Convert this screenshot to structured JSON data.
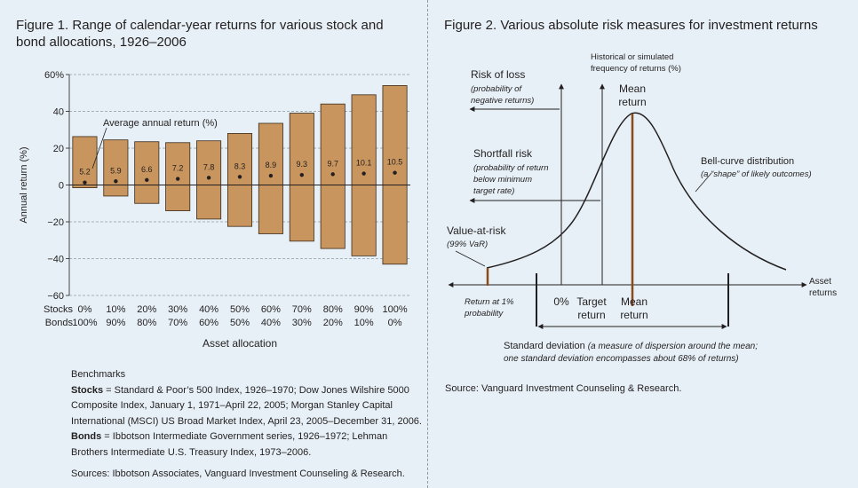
{
  "figure1": {
    "title": "Figure 1. Range of calendar-year returns for various stock and bond allocations, 1926–2006",
    "chart_data": {
      "type": "bar",
      "subtype": "floating-range",
      "ylabel": "Annual return (%)",
      "xlabel": "Asset allocation",
      "ylim": [
        -60,
        60
      ],
      "yticks": [
        "60%",
        "40",
        "20",
        "0",
        "−20",
        "−40",
        "−60"
      ],
      "ytick_values": [
        60,
        40,
        20,
        0,
        -20,
        -40,
        -60
      ],
      "row_labels": [
        "Stocks",
        "Bonds"
      ],
      "categories_stocks": [
        "0%",
        "10%",
        "20%",
        "30%",
        "40%",
        "50%",
        "60%",
        "70%",
        "80%",
        "90%",
        "100%"
      ],
      "categories_bonds": [
        "100%",
        "90%",
        "80%",
        "70%",
        "60%",
        "50%",
        "40%",
        "30%",
        "20%",
        "10%",
        "0%"
      ],
      "max": [
        26.3,
        24.5,
        23.5,
        23.0,
        24.0,
        28.0,
        33.5,
        39.0,
        44.0,
        49.0,
        54.0
      ],
      "min": [
        -1.5,
        -6.0,
        -10.0,
        -14.0,
        -18.5,
        -22.5,
        -26.5,
        -30.5,
        -34.5,
        -38.5,
        -43.0
      ],
      "average": [
        5.2,
        5.9,
        6.6,
        7.2,
        7.8,
        8.3,
        8.9,
        9.3,
        9.7,
        10.1,
        10.5
      ],
      "average_labels": [
        "5.2",
        "5.9",
        "6.6",
        "7.2",
        "7.8",
        "8.3",
        "8.9",
        "9.3",
        "9.7",
        "10.1",
        "10.5"
      ],
      "annotation": "Average annual return (%)",
      "grid": true,
      "colors": {
        "bar": "#c8955e",
        "bar_edge": "#3b2a1a",
        "grid": "#8e9aa4"
      }
    },
    "benchmarks": {
      "heading": "Benchmarks",
      "stocks_label": "Stocks",
      "stocks_text": " = Standard & Poor’s 500 Index, 1926–1970; Dow Jones Wilshire 5000 Composite Index, January 1, 1971–April 22, 2005; Morgan Stanley Capital International (MSCI) US Broad Market Index, April 23, 2005–December 31, 2006.",
      "bonds_label": "Bonds",
      "bonds_text": " = Ibbotson Intermediate Government series, 1926–1972; Lehman Brothers Intermediate U.S. Treasury Index, 1973–2006."
    },
    "sources": "Sources: Ibbotson Associates, Vanguard Investment Counseling & Research."
  },
  "figure2": {
    "title": "Figure 2. Various absolute risk measures for investment returns",
    "yaxis_label": [
      "Historical or simulated",
      "frequency of returns (%)"
    ],
    "xaxis_label": [
      "Asset",
      "returns"
    ],
    "risk_of_loss": {
      "title": "Risk of loss",
      "sub": [
        "(probability of",
        "negative returns)"
      ]
    },
    "shortfall_risk": {
      "title": "Shortfall risk",
      "sub": [
        "(probability of return",
        "below minimum",
        "target rate)"
      ]
    },
    "value_at_risk": {
      "title": "Value-at-risk",
      "sub": "(99% VaR)"
    },
    "mean_top": [
      "Mean",
      "return"
    ],
    "bell_curve": {
      "title": "Bell-curve distribution",
      "sub": "(a “shape” of likely outcomes)"
    },
    "return_1pct": [
      "Return at 1%",
      "probability"
    ],
    "zero": "0%",
    "target_return": [
      "Target",
      "return"
    ],
    "mean_bottom": [
      "Mean",
      "return"
    ],
    "std_dev": {
      "title": "Standard deviation",
      "sub1": "(a measure of dispersion around the mean;",
      "sub2": "one standard deviation encompasses about 68% of returns)"
    },
    "source": "Source: Vanguard Investment Counseling & Research.",
    "colors": {
      "accent": "#8b4a1c",
      "line": "#231f20"
    }
  }
}
